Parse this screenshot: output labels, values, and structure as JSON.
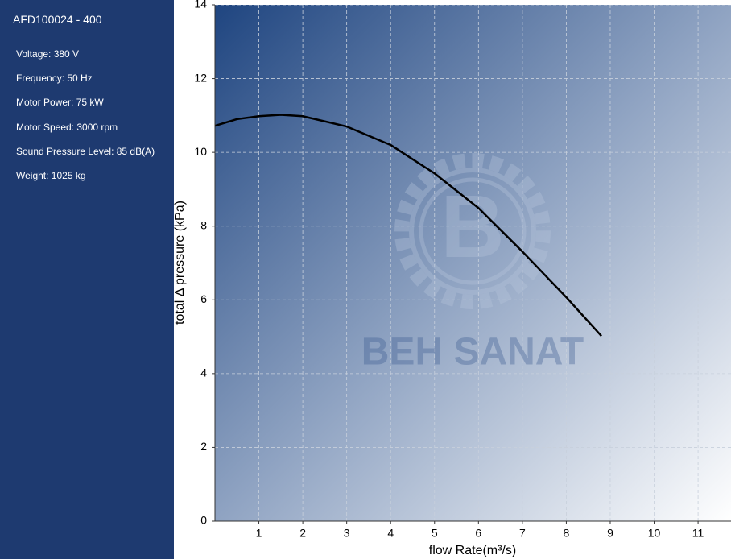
{
  "sidebar": {
    "title": "AFD100024 - 400",
    "specs": [
      "Voltage: 380 V",
      "Frequency: 50 Hz",
      "Motor Power: 75 kW",
      "Motor Speed: 3000 rpm",
      "Sound Pressure Level: 85 dB(A)",
      "Weight: 1025 kg"
    ]
  },
  "chart_data": {
    "type": "line",
    "x_label": "flow Rate(m³/s)",
    "y_label": "total Δ pressure (kPa)",
    "watermark": "BEH SANAT",
    "x": [
      0,
      0.5,
      1,
      1.5,
      2,
      3,
      4,
      5,
      6,
      7,
      8,
      8.8
    ],
    "series": [
      {
        "color": "#000000",
        "values": [
          10.72,
          10.9,
          10.98,
          11.02,
          10.98,
          10.7,
          10.2,
          9.43,
          8.49,
          7.31,
          6.07,
          5.02
        ]
      }
    ],
    "xlim": [
      0,
      11.75
    ],
    "ylim": [
      0,
      14
    ],
    "xticks": [
      1,
      2,
      3,
      4,
      5,
      6,
      7,
      8,
      9,
      10,
      11
    ],
    "yticks": [
      0,
      2,
      4,
      6,
      8,
      10,
      12,
      14
    ],
    "grid": true
  }
}
